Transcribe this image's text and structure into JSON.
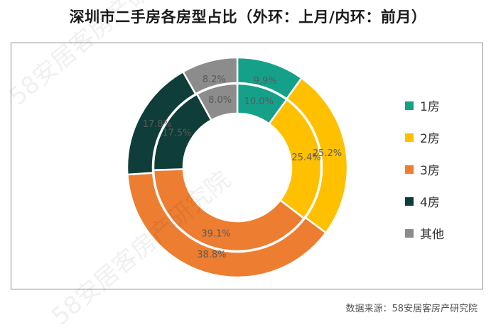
{
  "title": "深圳市二手房各房型占比（外环：上月/内环：前月）",
  "source": "数据来源：58安居客房产研究院",
  "watermark": "58安居客房产研究院",
  "chart_data": {
    "type": "donut",
    "title": "深圳市二手房各房型占比（外环：上月/内环：前月）",
    "categories": [
      "1房",
      "2房",
      "3房",
      "4房",
      "其他"
    ],
    "colors": [
      "#15a08a",
      "#ffc000",
      "#ed7d31",
      "#0e3d3a",
      "#8c8c8c"
    ],
    "series": [
      {
        "values": [
          9.9,
          25.2,
          38.8,
          17.8,
          8.2
        ],
        "labels": [
          "9.9%",
          "25.2%",
          "38.8%",
          "17.8%",
          "8.2%"
        ]
      },
      {
        "values": [
          10.0,
          25.4,
          39.1,
          17.5,
          8.0
        ],
        "labels": [
          "10.0%",
          "25.4%",
          "39.1%",
          "17.5%",
          "8.0%"
        ]
      }
    ],
    "legend_position": "right"
  }
}
